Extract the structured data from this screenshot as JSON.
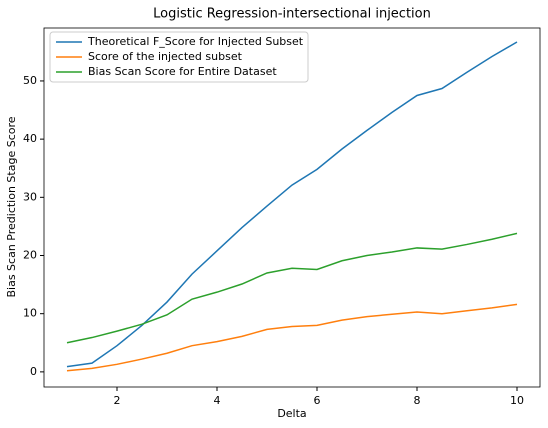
{
  "chart_data": {
    "type": "line",
    "title": "Logistic Regression-intersectional injection",
    "x_label": "Delta",
    "y_label": "Bias Scan Prediction Stage Score",
    "x": [
      1,
      1.5,
      2,
      2.5,
      3,
      3.5,
      4,
      4.5,
      5,
      5.5,
      6,
      6.5,
      7,
      7.5,
      8,
      8.5,
      9,
      9.5,
      10
    ],
    "series": [
      {
        "name": "Theoretical F_Score for Injected Subset",
        "color": "#1f77b4",
        "values": [
          0.9,
          1.5,
          4.5,
          8,
          12,
          16.8,
          20.8,
          24.8,
          28.5,
          32.1,
          34.8,
          38.3,
          41.5,
          44.6,
          47.5,
          48.7,
          51.5,
          54.2,
          56.7
        ]
      },
      {
        "name": "Score of the injected subset",
        "color": "#ff7f0e",
        "values": [
          0.2,
          0.6,
          1.3,
          2.2,
          3.2,
          4.5,
          5.2,
          6.1,
          7.3,
          7.8,
          8.0,
          8.9,
          9.5,
          9.9,
          10.3,
          10.0,
          10.5,
          11.0,
          11.6
        ]
      },
      {
        "name": "Bias Scan Score for Entire Dataset",
        "color": "#2ca02c",
        "values": [
          5.0,
          5.9,
          7.0,
          8.2,
          9.8,
          12.5,
          13.7,
          15.1,
          17.0,
          17.8,
          17.6,
          19.1,
          20.0,
          20.6,
          21.3,
          21.1,
          21.9,
          22.8,
          23.8
        ]
      }
    ],
    "xlim": [
      0.54,
      10.46
    ],
    "ylim": [
      -2.6,
      59.1
    ],
    "xticks": [
      2,
      4,
      6,
      8,
      10
    ],
    "yticks": [
      0,
      10,
      20,
      30,
      40,
      50
    ],
    "legend": "upper left"
  }
}
